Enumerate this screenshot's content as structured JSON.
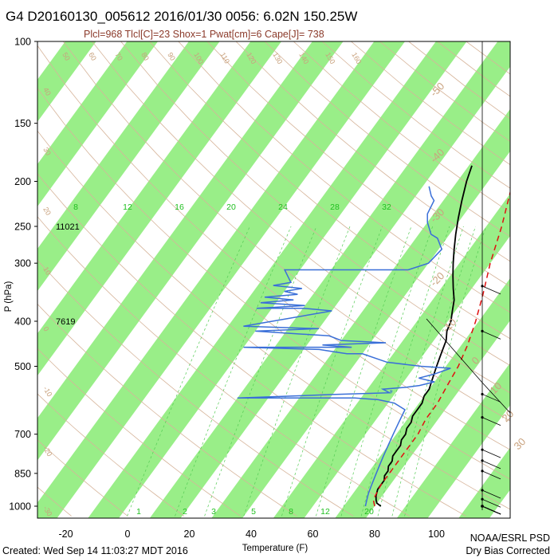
{
  "header": {
    "title": "G4 D20160130_005612 2016/01/30 0056:  6.02N 150.25W",
    "subtitle": "Plcl=968 Tlcl[C]=23 Shox=1 Pwat[cm]=6 Cape[J]= 738"
  },
  "footer": {
    "created": "Created: Wed Sep 14 11:03:27 MDT 2016",
    "org": "NOAA/ESRL PSD",
    "note": "Dry Bias Corrected"
  },
  "colors": {
    "band": "#99ee88",
    "temperature": "#000000",
    "dewpoint": "#3a6fd8",
    "parcel": "#e01010",
    "isotherm_label": "#c9a27e",
    "mixing_ratio": "#1fbf1f"
  },
  "chart_data": {
    "type": "skew-t log-p sounding",
    "xlabel": "Temperature (F)",
    "ylabel": "P (hPa)",
    "x_ticks": [
      "-20",
      "0",
      "20",
      "40",
      "60",
      "80",
      "100"
    ],
    "y_ticks": [
      "100",
      "150",
      "200",
      "250",
      "300",
      "400",
      "500",
      "700",
      "850",
      "1000"
    ],
    "xlim": [
      -28,
      105
    ],
    "ylim": [
      1050,
      100
    ],
    "skewed_isotherm_labels_F": [
      "-50",
      "-40",
      "-30",
      "-20",
      "-10",
      "0",
      "10",
      "20",
      "30"
    ],
    "top_theta_labels": [
      "50",
      "60",
      "70",
      "80",
      "90",
      "100",
      "110",
      "120",
      "130",
      "140",
      "150",
      "160"
    ],
    "left_theta_labels": [
      "40",
      "30",
      "20",
      "10",
      "0",
      "-10",
      "-20",
      "-30"
    ],
    "mixing_ratio_labels": [
      "8",
      "12",
      "16",
      "20",
      "24",
      "28",
      "32"
    ],
    "bottom_mixing_labels": [
      "1",
      "2",
      "3",
      "5",
      "8",
      "12",
      "20"
    ],
    "heights": [
      {
        "p": 250,
        "label": "11021"
      },
      {
        "p": 400,
        "label": "7619"
      }
    ],
    "series": [
      {
        "key": "temperature",
        "points": [
          [
            82,
            1000
          ],
          [
            80,
            985
          ],
          [
            79,
            970
          ],
          [
            78,
            950
          ],
          [
            77,
            920
          ],
          [
            77,
            900
          ],
          [
            77,
            880
          ],
          [
            76,
            860
          ],
          [
            76,
            840
          ],
          [
            75,
            820
          ],
          [
            75,
            800
          ],
          [
            74,
            780
          ],
          [
            74,
            760
          ],
          [
            74,
            740
          ],
          [
            73,
            720
          ],
          [
            73,
            700
          ],
          [
            72,
            680
          ],
          [
            72,
            660
          ],
          [
            71,
            640
          ],
          [
            71,
            620
          ],
          [
            71,
            600
          ],
          [
            70,
            580
          ],
          [
            70,
            560
          ],
          [
            69,
            540
          ],
          [
            68,
            520
          ],
          [
            67,
            500
          ],
          [
            66,
            480
          ],
          [
            65,
            460
          ],
          [
            64,
            440
          ],
          [
            62,
            420
          ],
          [
            61,
            400
          ],
          [
            59,
            380
          ],
          [
            57,
            360
          ],
          [
            54,
            340
          ],
          [
            51,
            320
          ],
          [
            48,
            300
          ],
          [
            45,
            280
          ],
          [
            42,
            260
          ],
          [
            39,
            240
          ],
          [
            36,
            220
          ],
          [
            33,
            200
          ],
          [
            31,
            185
          ]
        ]
      },
      {
        "key": "dewpoint",
        "points": [
          [
            77,
            1000
          ],
          [
            76,
            970
          ],
          [
            75,
            940
          ],
          [
            74,
            900
          ],
          [
            73,
            860
          ],
          [
            72,
            820
          ],
          [
            71,
            780
          ],
          [
            70,
            740
          ],
          [
            69,
            700
          ],
          [
            68,
            660
          ],
          [
            67,
            620
          ],
          [
            62,
            600
          ],
          [
            56,
            590
          ],
          [
            48,
            585
          ],
          [
            10,
            585
          ],
          [
            40,
            575
          ],
          [
            58,
            570
          ],
          [
            55,
            560
          ],
          [
            62,
            555
          ],
          [
            66,
            550
          ],
          [
            70,
            540
          ],
          [
            64,
            530
          ],
          [
            68,
            520
          ],
          [
            72,
            505
          ],
          [
            62,
            500
          ],
          [
            50,
            490
          ],
          [
            40,
            470
          ],
          [
            35,
            470
          ],
          [
            30,
            465
          ],
          [
            25,
            460
          ],
          [
            0,
            455
          ],
          [
            35,
            455
          ],
          [
            25,
            450
          ],
          [
            45,
            445
          ],
          [
            30,
            440
          ],
          [
            25,
            430
          ],
          [
            0,
            420
          ],
          [
            20,
            415
          ],
          [
            -5,
            410
          ],
          [
            20,
            380
          ],
          [
            10,
            375
          ],
          [
            -5,
            375
          ],
          [
            10,
            370
          ],
          [
            -5,
            365
          ],
          [
            5,
            360
          ],
          [
            -5,
            355
          ],
          [
            5,
            350
          ],
          [
            0,
            345
          ],
          [
            5,
            340
          ],
          [
            -5,
            335
          ],
          [
            0,
            330
          ],
          [
            -5,
            310
          ],
          [
            35,
            310
          ],
          [
            40,
            300
          ],
          [
            41,
            280
          ],
          [
            37,
            265
          ],
          [
            34,
            260
          ],
          [
            30,
            245
          ],
          [
            28,
            235
          ],
          [
            27,
            220
          ],
          [
            25,
            215
          ],
          [
            22,
            205
          ]
        ]
      },
      {
        "key": "parcel",
        "points": [
          [
            80,
            1000
          ],
          [
            78,
            968
          ],
          [
            77,
            900
          ],
          [
            77,
            850
          ],
          [
            77,
            800
          ],
          [
            77,
            750
          ],
          [
            77,
            700
          ],
          [
            76,
            650
          ],
          [
            76,
            600
          ],
          [
            75,
            550
          ],
          [
            74,
            500
          ],
          [
            72,
            450
          ],
          [
            69,
            400
          ],
          [
            65,
            350
          ],
          [
            60,
            300
          ],
          [
            55,
            250
          ],
          [
            48,
            200
          ],
          [
            46,
            190
          ]
        ]
      }
    ]
  }
}
